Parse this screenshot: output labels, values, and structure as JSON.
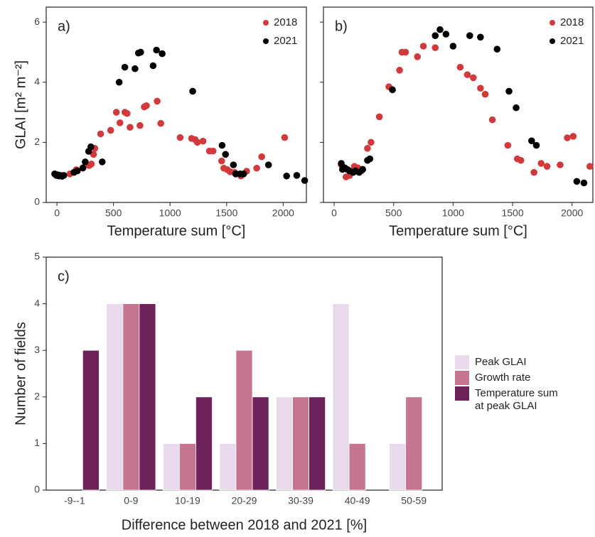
{
  "chart_data": [
    {
      "type": "scatter",
      "annotation": "a)",
      "x_label": "Temperature sum [°C]",
      "y_label": "GLAI [m² m⁻²]",
      "xlim": [
        -95,
        2205
      ],
      "ylim": [
        0,
        6.5
      ],
      "xticks": [
        0,
        500,
        1000,
        1500,
        2000
      ],
      "yticks": [
        0,
        2,
        4,
        6
      ],
      "show_yticklabels": true,
      "legend": "upper right",
      "grid": false,
      "series": [
        {
          "name": "2018",
          "color": "#d1393b",
          "x": [
            114,
            171,
            228,
            285,
            304,
            323,
            335,
            386,
            475,
            525,
            557,
            601,
            620,
            646,
            734,
            772,
            791,
            886,
            918,
            1089,
            1190,
            1222,
            1241,
            1291,
            1348,
            1380,
            1456,
            1475,
            1506,
            1532,
            1570,
            1627,
            1677,
            1766,
            1810,
            2013
          ],
          "values": [
            0.95,
            1.09,
            1.14,
            1.23,
            1.28,
            1.6,
            1.8,
            2.28,
            2.4,
            3.0,
            2.65,
            3.0,
            2.96,
            2.5,
            2.56,
            3.18,
            3.22,
            3.37,
            2.63,
            2.16,
            2.13,
            2.09,
            2.0,
            2.04,
            1.71,
            1.71,
            1.38,
            1.14,
            1.09,
            1.02,
            1.0,
            0.88,
            1.04,
            1.14,
            1.52,
            2.16
          ]
        },
        {
          "name": "2021",
          "color": "#000000",
          "x": [
            -20,
            -5,
            5,
            15,
            30,
            45,
            60,
            150,
            180,
            230,
            250,
            280,
            300,
            400,
            550,
            600,
            690,
            720,
            740,
            850,
            880,
            930,
            1200,
            1460,
            1490,
            1560,
            1580,
            1620,
            1650,
            1870,
            2030,
            2120,
            2190
          ],
          "values": [
            0.95,
            0.9,
            0.92,
            0.88,
            0.9,
            0.87,
            0.9,
            1.0,
            1.05,
            1.15,
            1.35,
            1.7,
            1.85,
            1.35,
            4.0,
            4.5,
            4.45,
            4.97,
            5.0,
            4.55,
            5.07,
            4.95,
            3.7,
            1.9,
            1.6,
            1.25,
            0.95,
            0.95,
            0.95,
            1.25,
            0.88,
            0.9,
            0.73
          ]
        }
      ]
    },
    {
      "type": "scatter",
      "annotation": "b)",
      "x_label": "Temperature sum [°C]",
      "xlim": [
        -90,
        2175
      ],
      "ylim": [
        0,
        6.5
      ],
      "xticks": [
        0,
        500,
        1000,
        1500,
        2000
      ],
      "yticks": [
        0,
        2,
        4,
        6
      ],
      "show_yticklabels": false,
      "legend": "upper right",
      "grid": false,
      "series": [
        {
          "name": "2018",
          "color": "#d1393b",
          "x": [
            60,
            100,
            130,
            170,
            200,
            230,
            280,
            310,
            380,
            460,
            550,
            570,
            600,
            700,
            750,
            850,
            1060,
            1120,
            1170,
            1230,
            1270,
            1330,
            1460,
            1540,
            1570,
            1680,
            1740,
            1790,
            1900,
            1960,
            2010,
            2150
          ],
          "values": [
            1.25,
            0.85,
            0.9,
            1.2,
            1.15,
            1.05,
            1.8,
            2.0,
            2.85,
            3.85,
            4.4,
            5.0,
            5.0,
            4.85,
            5.2,
            5.15,
            4.5,
            4.25,
            4.15,
            3.8,
            3.6,
            2.75,
            1.9,
            1.45,
            1.4,
            1.0,
            1.3,
            1.2,
            1.25,
            2.15,
            2.2,
            1.2
          ]
        },
        {
          "name": "2021",
          "color": "#000000",
          "x": [
            60,
            70,
            90,
            110,
            130,
            160,
            180,
            210,
            240,
            280,
            300,
            490,
            850,
            890,
            940,
            1000,
            1140,
            1230,
            1370,
            1470,
            1530,
            1660,
            1700,
            2040,
            2100
          ],
          "values": [
            1.3,
            1.1,
            1.15,
            1.1,
            1.05,
            1.0,
            1.05,
            1.0,
            1.1,
            1.4,
            1.45,
            3.75,
            5.55,
            5.75,
            5.6,
            5.2,
            5.55,
            5.5,
            5.1,
            3.7,
            3.15,
            2.05,
            1.9,
            0.7,
            0.65
          ]
        }
      ]
    },
    {
      "type": "bar",
      "annotation": "c)",
      "x_label": "Difference between 2018 and 2021 [%]",
      "y_label": "Number of fields",
      "categories": [
        "-9--1",
        "0-9",
        "10-19",
        "20-29",
        "30-39",
        "40-49",
        "50-59"
      ],
      "ylim": [
        0,
        5
      ],
      "yticks": [
        0,
        1,
        2,
        3,
        4,
        5
      ],
      "grid": false,
      "legend": "outside right",
      "series": [
        {
          "name": "Peak GLAI",
          "color": "#e9d9ec",
          "values": [
            null,
            4,
            1,
            1,
            2,
            4,
            1
          ]
        },
        {
          "name": "Growth rate",
          "color": "#c7758e",
          "values": [
            null,
            4,
            1,
            3,
            2,
            1,
            2
          ]
        },
        {
          "name": "Temperature sum at peak GLAI",
          "color": "#6d2259",
          "values": [
            3,
            4,
            2,
            2,
            2,
            null,
            null
          ]
        }
      ]
    }
  ]
}
